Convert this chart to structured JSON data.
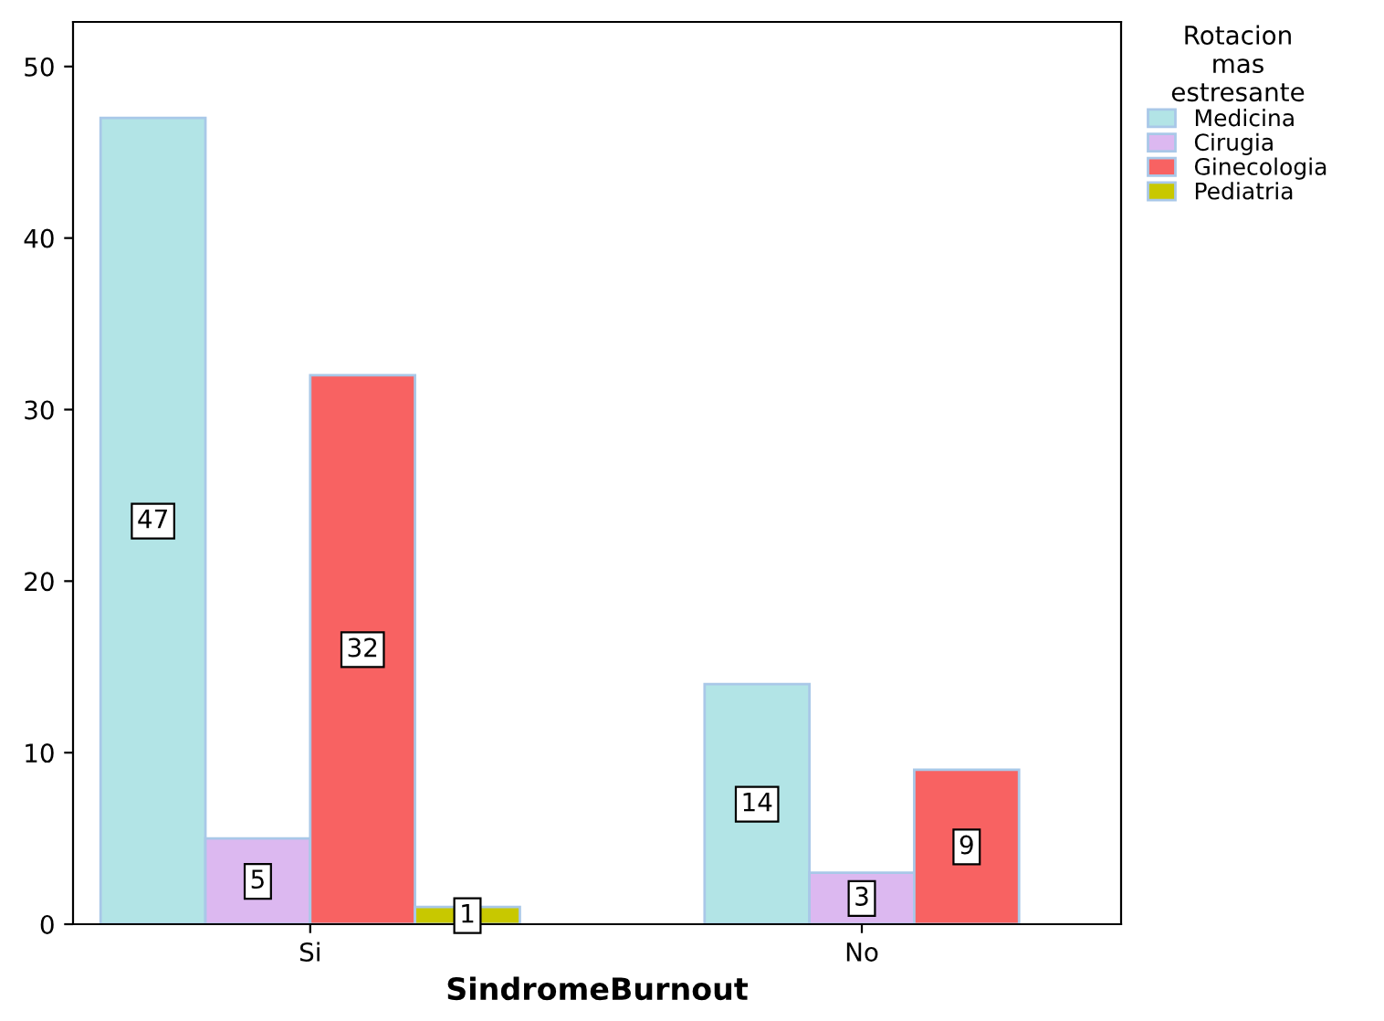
{
  "chart_data": {
    "type": "bar",
    "xlabel": "SindromeBurnout",
    "legend_title": "Rotacion\nmas\nestresante",
    "categories": [
      "Si",
      "No"
    ],
    "series": [
      {
        "name": "Medicina",
        "color": "#b2e4e6",
        "values": [
          47,
          14
        ]
      },
      {
        "name": "Cirugia",
        "color": "#dcb8f0",
        "values": [
          5,
          3
        ]
      },
      {
        "name": "Ginecologia",
        "color": "#f86262",
        "values": [
          32,
          9
        ]
      },
      {
        "name": "Pediatria",
        "color": "#c8c800",
        "values": [
          1,
          null
        ]
      }
    ],
    "ylim": [
      0,
      52.6
    ],
    "yticks": [
      0,
      10,
      20,
      30,
      40,
      50
    ],
    "grid": false,
    "legend": "top right",
    "data_labels": true
  }
}
